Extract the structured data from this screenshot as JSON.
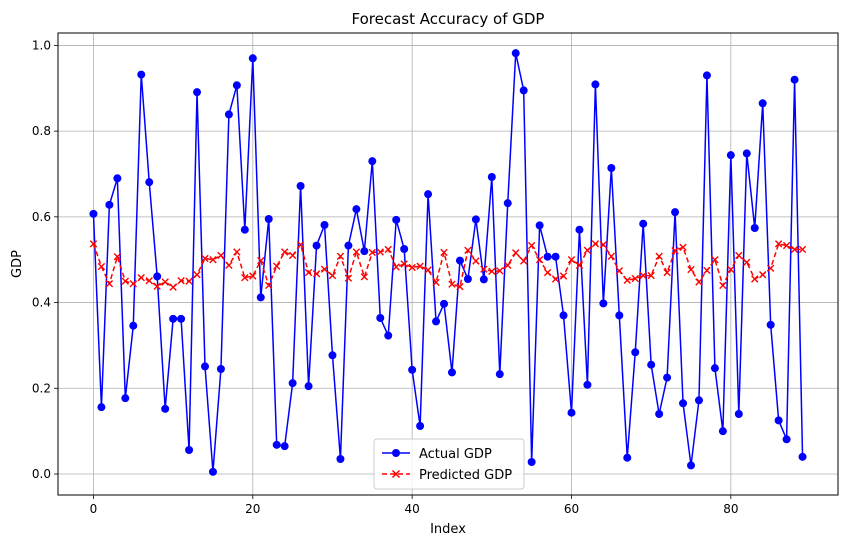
{
  "chart_data": {
    "type": "line",
    "title": "Forecast Accuracy of GDP",
    "xlabel": "Index",
    "ylabel": "GDP",
    "xlim": [
      -4.45,
      93.45
    ],
    "ylim": [
      -0.049,
      1.029
    ],
    "xticks": [
      0,
      20,
      40,
      60,
      80
    ],
    "xtick_labels": [
      "0",
      "20",
      "40",
      "60",
      "80"
    ],
    "yticks": [
      0.0,
      0.2,
      0.4,
      0.6,
      0.8,
      1.0
    ],
    "ytick_labels": [
      "0.0",
      "0.2",
      "0.4",
      "0.6",
      "0.8",
      "1.0"
    ],
    "grid": true,
    "legend_position": "lower-center",
    "series": [
      {
        "name": "Actual GDP",
        "color": "#0000ff",
        "marker": "circle",
        "linestyle": "solid",
        "values": [
          0.607,
          0.156,
          0.628,
          0.69,
          0.177,
          0.346,
          0.932,
          0.681,
          0.461,
          0.152,
          0.362,
          0.362,
          0.056,
          0.891,
          0.251,
          0.005,
          0.245,
          0.839,
          0.907,
          0.57,
          0.97,
          0.412,
          0.595,
          0.068,
          0.065,
          0.212,
          0.672,
          0.205,
          0.533,
          0.581,
          0.277,
          0.035,
          0.533,
          0.618,
          0.52,
          0.73,
          0.364,
          0.323,
          0.593,
          0.525,
          0.243,
          0.112,
          0.653,
          0.356,
          0.397,
          0.237,
          0.498,
          0.455,
          0.594,
          0.454,
          0.693,
          0.233,
          0.632,
          0.982,
          0.895,
          0.028,
          0.58,
          0.507,
          0.507,
          0.37,
          0.143,
          0.57,
          0.208,
          0.909,
          0.398,
          0.714,
          0.37,
          0.038,
          0.284,
          0.584,
          0.255,
          0.14,
          0.225,
          0.611,
          0.165,
          0.02,
          0.172,
          0.93,
          0.247,
          0.1,
          0.744,
          0.14,
          0.748,
          0.574,
          0.865,
          0.348,
          0.125,
          0.081,
          0.92,
          0.04
        ]
      },
      {
        "name": "Predicted GDP",
        "color": "#ff0000",
        "marker": "x",
        "linestyle": "dashed",
        "values": [
          0.537,
          0.484,
          0.444,
          0.507,
          0.45,
          0.444,
          0.458,
          0.451,
          0.438,
          0.448,
          0.436,
          0.451,
          0.45,
          0.465,
          0.503,
          0.5,
          0.51,
          0.487,
          0.518,
          0.458,
          0.462,
          0.498,
          0.44,
          0.485,
          0.518,
          0.51,
          0.535,
          0.47,
          0.467,
          0.478,
          0.463,
          0.508,
          0.457,
          0.518,
          0.46,
          0.517,
          0.518,
          0.524,
          0.483,
          0.49,
          0.482,
          0.485,
          0.476,
          0.447,
          0.517,
          0.443,
          0.437,
          0.522,
          0.497,
          0.478,
          0.473,
          0.474,
          0.487,
          0.516,
          0.497,
          0.533,
          0.5,
          0.47,
          0.455,
          0.462,
          0.5,
          0.487,
          0.522,
          0.537,
          0.535,
          0.508,
          0.474,
          0.452,
          0.456,
          0.463,
          0.463,
          0.508,
          0.47,
          0.521,
          0.529,
          0.477,
          0.448,
          0.475,
          0.5,
          0.44,
          0.477,
          0.51,
          0.494,
          0.455,
          0.465,
          0.48,
          0.537,
          0.533,
          0.524,
          0.524
        ]
      }
    ]
  }
}
